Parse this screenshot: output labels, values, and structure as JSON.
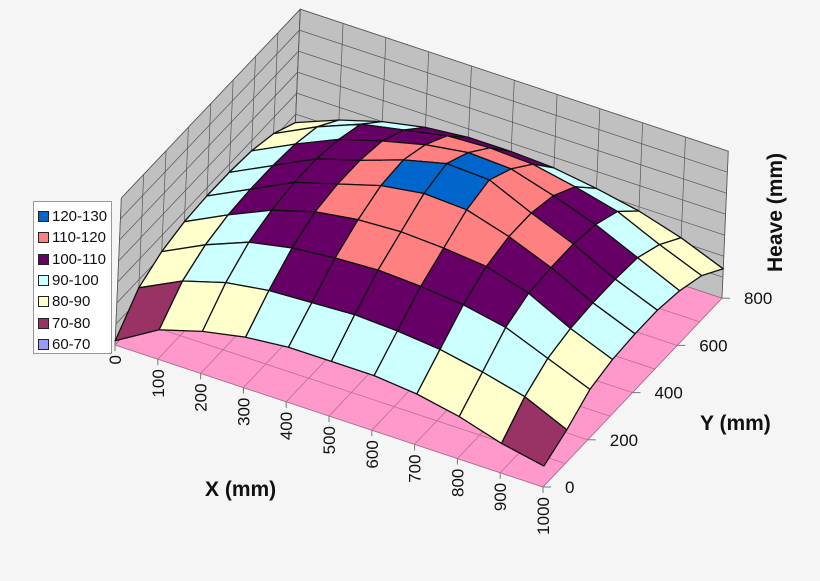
{
  "chart_data": {
    "type": "surface3d",
    "title": "",
    "xlabel": "X (mm)",
    "ylabel": "Y (mm)",
    "zlabel": "Heave (mm)",
    "x": [
      0,
      100,
      200,
      300,
      400,
      500,
      600,
      700,
      800,
      900,
      1000
    ],
    "y": [
      0,
      100,
      200,
      300,
      400,
      500,
      600,
      700,
      800
    ],
    "x_tick_labels": [
      "0",
      "100",
      "200",
      "300",
      "400",
      "500",
      "600",
      "700",
      "800",
      "900",
      "1000"
    ],
    "y_tick_labels": [
      "0",
      "200",
      "400",
      "600",
      "800"
    ],
    "zlim": [
      60,
      130
    ],
    "grid": true,
    "legend_position": "left",
    "legend": [
      {
        "label": "120-130",
        "min": 120,
        "max": 130,
        "color": "#0066cc"
      },
      {
        "label": "110-120",
        "min": 110,
        "max": 120,
        "color": "#ff8080"
      },
      {
        "label": "100-110",
        "min": 100,
        "max": 110,
        "color": "#660066"
      },
      {
        "label": "90-100",
        "min": 90,
        "max": 100,
        "color": "#ccffff"
      },
      {
        "label": "80-90",
        "min": 80,
        "max": 90,
        "color": "#ffffcc"
      },
      {
        "label": "70-80",
        "min": 70,
        "max": 80,
        "color": "#993366"
      },
      {
        "label": "60-70",
        "min": 60,
        "max": 70,
        "color": "#9999ff"
      }
    ],
    "z": [
      [
        62,
        76,
        82,
        85,
        86,
        86,
        85,
        82,
        76
      ],
      [
        74,
        86,
        92,
        95,
        96,
        96,
        95,
        92,
        84
      ],
      [
        80,
        92,
        100,
        104,
        106,
        106,
        104,
        100,
        90
      ],
      [
        84,
        95,
        104,
        110,
        112,
        112,
        110,
        104,
        94
      ],
      [
        86,
        96,
        106,
        113,
        118,
        119,
        115,
        108,
        96
      ],
      [
        86,
        97,
        107,
        114,
        121,
        124,
        118,
        109,
        96
      ],
      [
        86,
        96,
        106,
        113,
        120,
        123,
        117,
        108,
        95
      ],
      [
        84,
        94,
        104,
        111,
        114,
        114,
        111,
        104,
        92
      ],
      [
        80,
        90,
        100,
        105,
        106,
        106,
        104,
        99,
        88
      ],
      [
        74,
        85,
        92,
        95,
        96,
        96,
        95,
        90,
        82
      ],
      [
        70,
        76,
        84,
        87,
        88,
        88,
        86,
        82,
        74
      ]
    ]
  },
  "colors": {
    "floor": "#ff99cc",
    "wall": "#c0c0c0",
    "background": "#f5f5f5"
  }
}
